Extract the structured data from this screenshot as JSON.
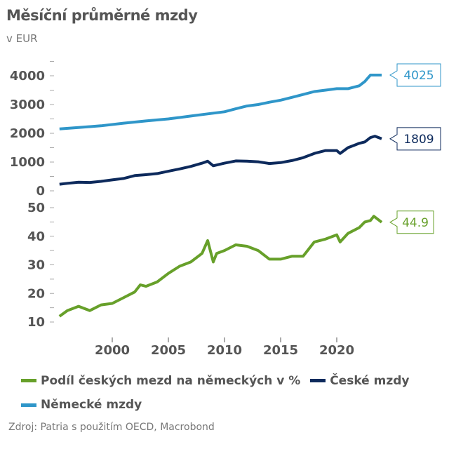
{
  "title": "Měsíční průměrné mzdy",
  "subtitle": "v EUR",
  "source": "Zdroj: Patria s použitím OECD, Macrobond",
  "chart_data": [
    {
      "type": "line",
      "panel": "top",
      "ylim": [
        0,
        4500
      ],
      "yticks": [
        "0",
        "1000",
        "2000",
        "3000",
        "4000"
      ],
      "grid": false,
      "series": [
        {
          "name": "Německé mzdy",
          "color": "#2f96c9",
          "last_label": "4025",
          "x": [
            1995.3,
            1997,
            1999,
            2001,
            2003,
            2005,
            2007,
            2008,
            2009,
            2010,
            2011,
            2012,
            2013,
            2014,
            2015,
            2016,
            2017,
            2018,
            2019,
            2020,
            2021,
            2022,
            2022.5,
            2023,
            2024
          ],
          "y": [
            2150,
            2200,
            2260,
            2350,
            2430,
            2500,
            2600,
            2650,
            2700,
            2750,
            2850,
            2950,
            3000,
            3080,
            3150,
            3250,
            3350,
            3450,
            3500,
            3550,
            3550,
            3650,
            3800,
            4025,
            4025
          ]
        },
        {
          "name": "České mzdy",
          "color": "#0d2a5c",
          "last_label": "1809",
          "x": [
            1995.3,
            1996,
            1997,
            1998,
            1999,
            2000,
            2001,
            2002,
            2003,
            2004,
            2005,
            2006,
            2007,
            2008,
            2008.5,
            2009,
            2010,
            2011,
            2012,
            2013,
            2014,
            2015,
            2016,
            2017,
            2018,
            2019,
            2020,
            2020.3,
            2021,
            2022,
            2022.5,
            2023,
            2023.4,
            2024
          ],
          "y": [
            230,
            260,
            300,
            290,
            330,
            380,
            430,
            530,
            560,
            600,
            680,
            760,
            850,
            960,
            1030,
            870,
            960,
            1040,
            1030,
            1010,
            950,
            980,
            1050,
            1150,
            1300,
            1400,
            1400,
            1300,
            1500,
            1650,
            1700,
            1850,
            1900,
            1809
          ]
        }
      ]
    },
    {
      "type": "line",
      "panel": "bottom",
      "ylim": [
        7,
        52
      ],
      "yticks": [
        "10",
        "20",
        "30",
        "40",
        "50"
      ],
      "xticks": [
        "2000",
        "2005",
        "2010",
        "2015",
        "2020"
      ],
      "grid": false,
      "series": [
        {
          "name": "Podíl českých mezd na německých v %",
          "color": "#67a02a",
          "last_label": "44.9",
          "x": [
            1995.3,
            1996,
            1997,
            1998,
            1999,
            2000,
            2001,
            2002,
            2002.5,
            2003,
            2004,
            2005,
            2006,
            2007,
            2008,
            2008.5,
            2009,
            2009.3,
            2010,
            2011,
            2012,
            2013,
            2014,
            2015,
            2016,
            2017,
            2018,
            2019,
            2020,
            2020.3,
            2021,
            2022,
            2022.5,
            2023,
            2023.3,
            2023.8,
            2024
          ],
          "y": [
            12,
            14,
            15.5,
            14,
            16,
            16.5,
            18.5,
            20.5,
            23,
            22.5,
            24,
            27,
            29.5,
            31,
            34,
            38.5,
            31,
            34,
            35,
            37,
            36.5,
            35,
            32,
            32,
            33,
            33,
            38,
            39,
            40.5,
            38,
            41,
            43,
            45,
            45.5,
            47,
            45.5,
            44.9
          ]
        }
      ]
    }
  ],
  "legend": [
    {
      "label": "Podíl českých mezd na německých v %",
      "color": "#67a02a"
    },
    {
      "label": "České mzdy",
      "color": "#0d2a5c"
    },
    {
      "label": "Německé mzdy",
      "color": "#2f96c9"
    }
  ]
}
